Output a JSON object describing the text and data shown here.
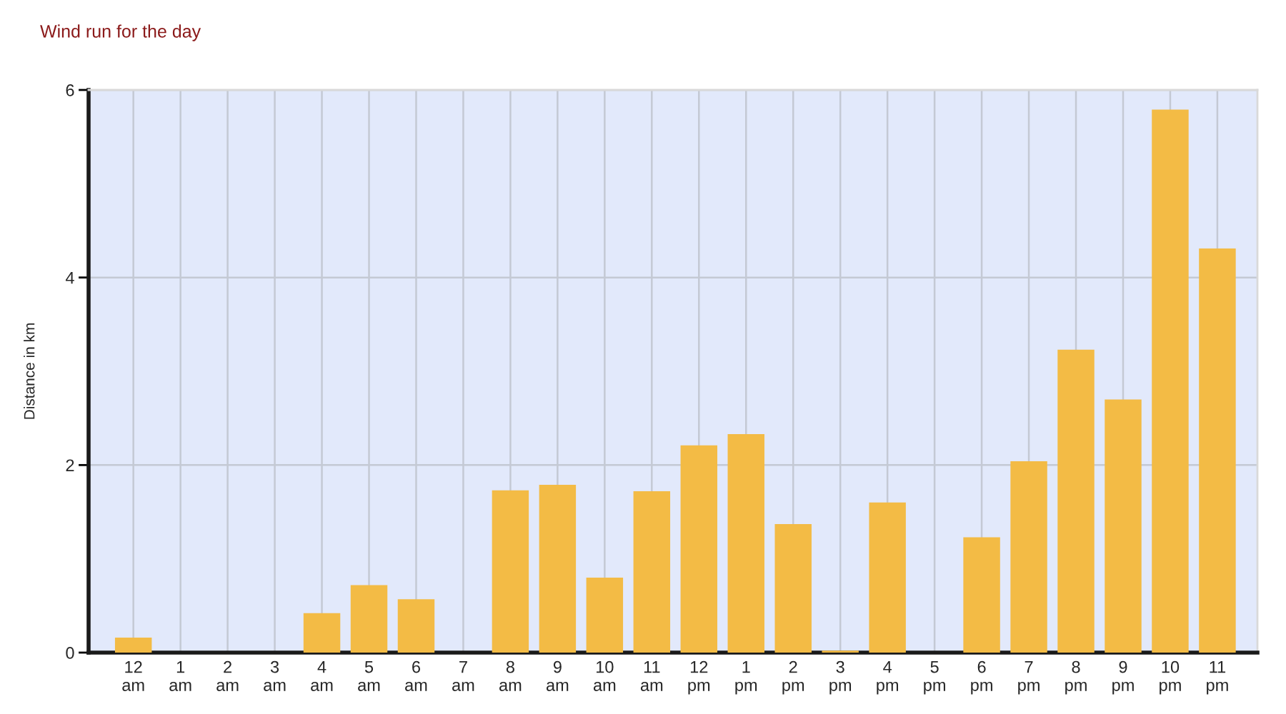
{
  "chart_data": {
    "type": "bar",
    "title": "Wind run for the day",
    "ylabel": "Distance in km",
    "categories": [
      "12\nam",
      "1\nam",
      "2\nam",
      "3\nam",
      "4\nam",
      "5\nam",
      "6\nam",
      "7\nam",
      "8\nam",
      "9\nam",
      "10\nam",
      "11\nam",
      "12\npm",
      "1\npm",
      "2\npm",
      "3\npm",
      "4\npm",
      "5\npm",
      "6\npm",
      "7\npm",
      "8\npm",
      "9\npm",
      "10\npm",
      "11\npm"
    ],
    "values": [
      0.16,
      0,
      0,
      0,
      0.42,
      0.72,
      0.57,
      0,
      1.73,
      1.79,
      0.8,
      1.72,
      2.21,
      2.33,
      1.37,
      0.02,
      1.6,
      0,
      1.23,
      2.04,
      3.23,
      2.7,
      5.79,
      4.31
    ],
    "color": "#f3bb45",
    "ylim": [
      0,
      6
    ],
    "yticks": [
      0,
      2,
      4,
      6
    ],
    "grid": true
  }
}
